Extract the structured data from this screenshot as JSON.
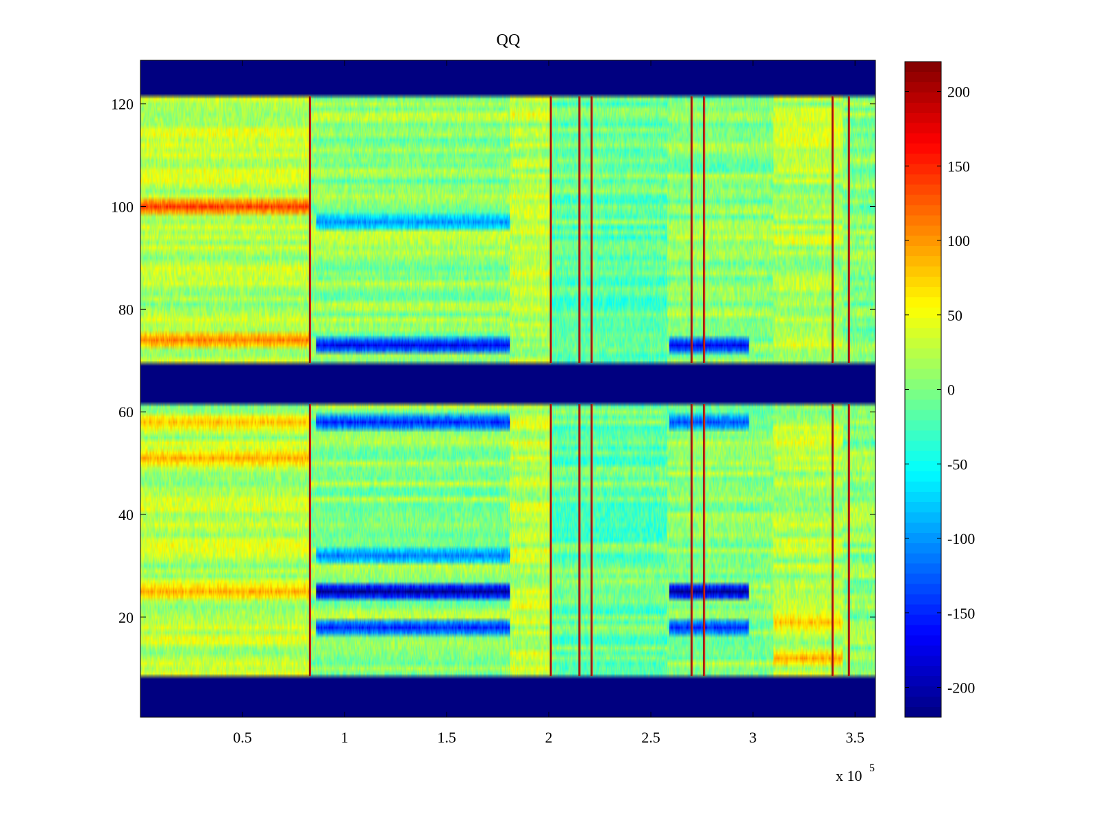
{
  "chart_data": {
    "type": "heatmap",
    "title": "QQ",
    "xlabel": "",
    "ylabel": "",
    "x_exponent_label": "x 10",
    "x_exponent_power": "5",
    "xlim": [
      0.0,
      3.6
    ],
    "ylim": [
      1,
      128
    ],
    "x_ticks": [
      0.5,
      1,
      1.5,
      2,
      2.5,
      3,
      3.5
    ],
    "x_tick_labels": [
      "0.5",
      "1",
      "1.5",
      "2",
      "2.5",
      "3",
      "3.5"
    ],
    "y_ticks": [
      20,
      40,
      60,
      80,
      100,
      120
    ],
    "y_tick_labels": [
      "20",
      "40",
      "60",
      "80",
      "100",
      "120"
    ],
    "colormap": "jet",
    "clim": [
      -220,
      220
    ],
    "colorbar_ticks": [
      200,
      150,
      100,
      50,
      0,
      -50,
      -100,
      -150,
      -200
    ],
    "colorbar_tick_labels": [
      "200",
      "150",
      "100",
      "50",
      "0",
      "-50",
      "-100",
      "-150",
      "-200"
    ],
    "blank_channel_bands": [
      [
        1,
        8
      ],
      [
        62,
        69
      ],
      [
        122,
        128
      ]
    ],
    "segment_boundaries_x": [
      0.83,
      1.81,
      2.01,
      2.58,
      3.1,
      3.44
    ],
    "vertical_spike_lines_x": [
      0.83,
      2.01,
      2.15,
      2.21,
      2.7,
      2.76,
      3.39,
      3.47
    ],
    "negative_stripes": [
      {
        "x_range": [
          0.86,
          1.81
        ],
        "y": 25,
        "value": -210
      },
      {
        "x_range": [
          0.86,
          1.81
        ],
        "y": 18,
        "value": -150
      },
      {
        "x_range": [
          0.86,
          1.81
        ],
        "y": 32,
        "value": -110
      },
      {
        "x_range": [
          0.86,
          1.81
        ],
        "y": 58,
        "value": -150
      },
      {
        "x_range": [
          0.86,
          1.81
        ],
        "y": 73,
        "value": -170
      },
      {
        "x_range": [
          0.86,
          1.81
        ],
        "y": 97,
        "value": -100
      },
      {
        "x_range": [
          2.59,
          2.98
        ],
        "y": 25,
        "value": -210
      },
      {
        "x_range": [
          2.59,
          2.98
        ],
        "y": 18,
        "value": -150
      },
      {
        "x_range": [
          2.59,
          2.98
        ],
        "y": 58,
        "value": -130
      },
      {
        "x_range": [
          2.59,
          2.98
        ],
        "y": 73,
        "value": -170
      }
    ],
    "positive_stripes": [
      {
        "x_range": [
          0.0,
          0.83
        ],
        "y": 100,
        "value": 140
      },
      {
        "x_range": [
          0.0,
          0.83
        ],
        "y": 74,
        "value": 110
      },
      {
        "x_range": [
          0.0,
          0.83
        ],
        "y": 51,
        "value": 90
      },
      {
        "x_range": [
          0.0,
          0.83
        ],
        "y": 58,
        "value": 80
      },
      {
        "x_range": [
          0.0,
          0.83
        ],
        "y": 25,
        "value": 90
      },
      {
        "x_range": [
          3.1,
          3.44
        ],
        "y": 12,
        "value": 90
      },
      {
        "x_range": [
          3.1,
          3.44
        ],
        "y": 19,
        "value": 80
      }
    ]
  }
}
